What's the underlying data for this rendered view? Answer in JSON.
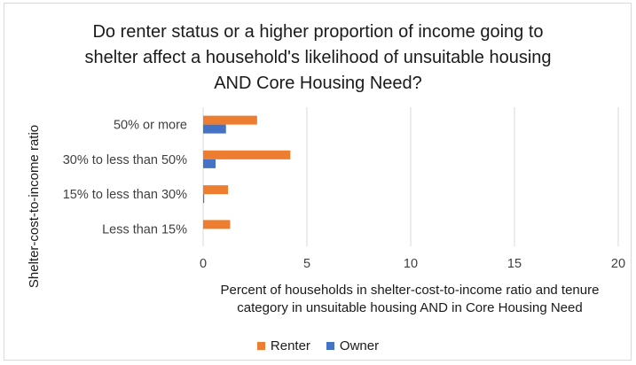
{
  "chart_data": {
    "type": "bar",
    "orientation": "horizontal",
    "title": "Do renter status or a higher proportion of income going to\nshelter affect a household's likelihood of unsuitable housing\nAND Core Housing Need?",
    "ylabel": "Shelter-cost-to-income ratio",
    "xlabel": "Percent of households in shelter-cost-to-income ratio and tenure\ncategory in unsuitable housing AND in Core Housing Need",
    "categories": [
      "50% or more",
      "30% to less than 50%",
      "15% to less than 30%",
      "Less than 15%"
    ],
    "series": [
      {
        "name": "Renter",
        "color": "#ed7d31",
        "values": [
          2.6,
          4.2,
          1.2,
          1.3
        ]
      },
      {
        "name": "Owner",
        "color": "#4472c4",
        "values": [
          1.1,
          0.6,
          0.05,
          0.0
        ]
      }
    ],
    "xlim": [
      0,
      20
    ],
    "xticks": [
      0,
      5,
      10,
      15,
      20
    ],
    "grid": true,
    "legend_position": "bottom"
  }
}
